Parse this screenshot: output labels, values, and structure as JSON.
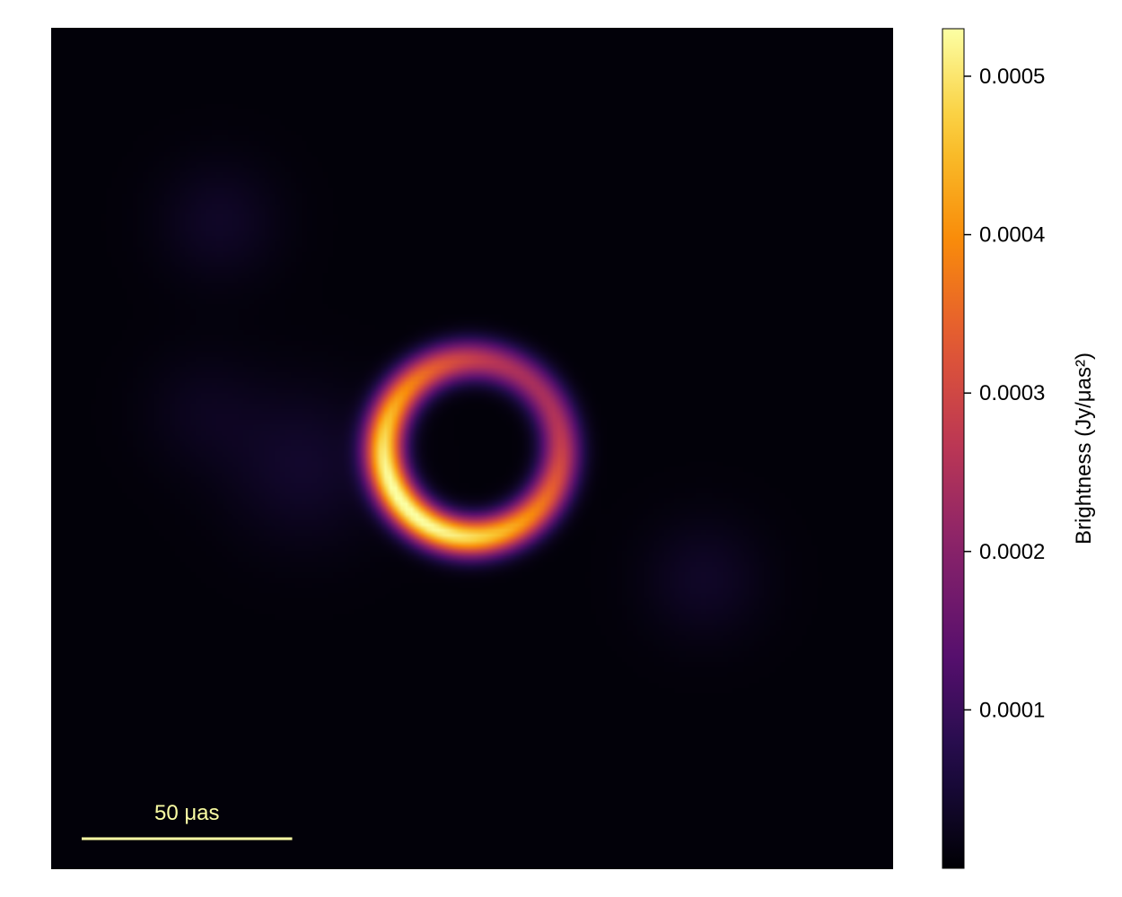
{
  "chart_data": {
    "type": "heatmap",
    "title": "",
    "colormap": "inferno",
    "colorbar": {
      "label": "Brightness (Jy/μas²)",
      "range": [
        0.0,
        0.00053
      ],
      "ticks": [
        {
          "value": 0.0001,
          "label": "0.0001"
        },
        {
          "value": 0.0002,
          "label": "0.0002"
        },
        {
          "value": 0.0003,
          "label": "0.0003"
        },
        {
          "value": 0.0004,
          "label": "0.0004"
        },
        {
          "value": 0.0005,
          "label": "0.0005"
        }
      ]
    },
    "image": {
      "field_of_view_uas": 200,
      "background_brightness": 5e-06,
      "ring": {
        "center_uas": [
          0,
          0
        ],
        "radius_uas": 21,
        "width_uas": 7,
        "peak_brightness": 0.00053,
        "brightest_side": "south-west",
        "faintest_side": "north-east"
      },
      "diffuse_blobs": [
        {
          "center_uas": [
            -60,
            54
          ],
          "sigma_uas": 10,
          "brightness": 3e-05
        },
        {
          "center_uas": [
            -64,
            9
          ],
          "sigma_uas": 10,
          "brightness": 2e-05
        },
        {
          "center_uas": [
            -40,
            -4
          ],
          "sigma_uas": 13,
          "brightness": 3.5e-05
        },
        {
          "center_uas": [
            55,
            -31
          ],
          "sigma_uas": 10,
          "brightness": 3e-05
        }
      ]
    },
    "scalebar": {
      "label": "50 μas",
      "length_uas": 50,
      "color": "#FCFFA4"
    },
    "grid": false,
    "axes_visible": false
  }
}
